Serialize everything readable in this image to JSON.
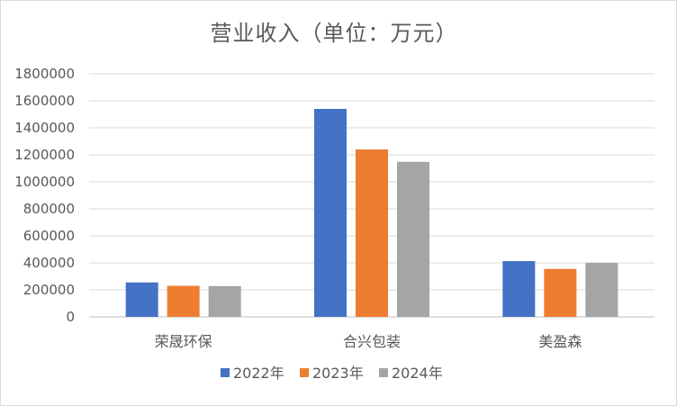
{
  "chart_data": {
    "type": "bar",
    "title": "营业收入（单位：万元）",
    "categories": [
      "荣晟环保",
      "合兴包装",
      "美盈森"
    ],
    "series": [
      {
        "name": "2022年",
        "color": "#4472c4",
        "values": [
          255000,
          1540000,
          413000
        ]
      },
      {
        "name": "2023年",
        "color": "#ed7d31",
        "values": [
          230000,
          1240000,
          355000
        ]
      },
      {
        "name": "2024年",
        "color": "#a5a5a5",
        "values": [
          228000,
          1148000,
          400000
        ]
      }
    ],
    "ylim": [
      0,
      1800000
    ],
    "yticks": [
      0,
      200000,
      400000,
      600000,
      800000,
      1000000,
      1200000,
      1400000,
      1600000,
      1800000
    ],
    "grid": true,
    "legend": "bottom"
  }
}
